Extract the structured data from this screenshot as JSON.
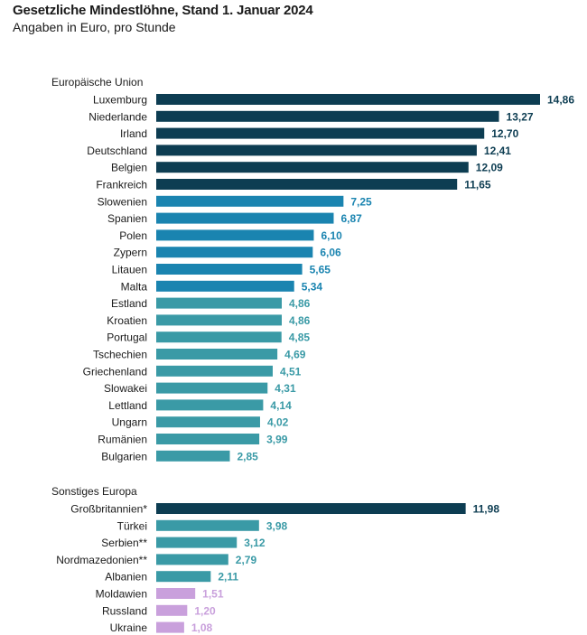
{
  "chart_data": {
    "type": "bar",
    "orientation": "horizontal",
    "title": "Gesetzliche Mindestlöhne, Stand 1. Januar 2024",
    "subtitle": "Angaben in Euro, pro Stunde",
    "groups": [
      {
        "label": "Europäische Union",
        "items": [
          {
            "category": "Luxemburg",
            "value": 14.86,
            "label": "14,86",
            "color": "#0d3d52"
          },
          {
            "category": "Niederlande",
            "value": 13.27,
            "label": "13,27",
            "color": "#0d3d52"
          },
          {
            "category": "Irland",
            "value": 12.7,
            "label": "12,70",
            "color": "#0d3d52"
          },
          {
            "category": "Deutschland",
            "value": 12.41,
            "label": "12,41",
            "color": "#0d3d52"
          },
          {
            "category": "Belgien",
            "value": 12.09,
            "label": "12,09",
            "color": "#0d3d52"
          },
          {
            "category": "Frankreich",
            "value": 11.65,
            "label": "11,65",
            "color": "#0d3d52"
          },
          {
            "category": "Slowenien",
            "value": 7.25,
            "label": "7,25",
            "color": "#1a84b0"
          },
          {
            "category": "Spanien",
            "value": 6.87,
            "label": "6,87",
            "color": "#1a84b0"
          },
          {
            "category": "Polen",
            "value": 6.1,
            "label": "6,10",
            "color": "#1a84b0"
          },
          {
            "category": "Zypern",
            "value": 6.06,
            "label": "6,06",
            "color": "#1a84b0"
          },
          {
            "category": "Litauen",
            "value": 5.65,
            "label": "5,65",
            "color": "#1a84b0"
          },
          {
            "category": "Malta",
            "value": 5.34,
            "label": "5,34",
            "color": "#1a84b0"
          },
          {
            "category": "Estland",
            "value": 4.86,
            "label": "4,86",
            "color": "#3a9aa6"
          },
          {
            "category": "Kroatien",
            "value": 4.86,
            "label": "4,86",
            "color": "#3a9aa6"
          },
          {
            "category": "Portugal",
            "value": 4.85,
            "label": "4,85",
            "color": "#3a9aa6"
          },
          {
            "category": "Tschechien",
            "value": 4.69,
            "label": "4,69",
            "color": "#3a9aa6"
          },
          {
            "category": "Griechenland",
            "value": 4.51,
            "label": "4,51",
            "color": "#3a9aa6"
          },
          {
            "category": "Slowakei",
            "value": 4.31,
            "label": "4,31",
            "color": "#3a9aa6"
          },
          {
            "category": "Lettland",
            "value": 4.14,
            "label": "4,14",
            "color": "#3a9aa6"
          },
          {
            "category": "Ungarn",
            "value": 4.02,
            "label": "4,02",
            "color": "#3a9aa6"
          },
          {
            "category": "Rumänien",
            "value": 3.99,
            "label": "3,99",
            "color": "#3a9aa6"
          },
          {
            "category": "Bulgarien",
            "value": 2.85,
            "label": "2,85",
            "color": "#3a9aa6"
          }
        ]
      },
      {
        "label": "Sonstiges Europa",
        "items": [
          {
            "category": "Großbritannien*",
            "value": 11.98,
            "label": "11,98",
            "color": "#0d3d52"
          },
          {
            "category": "Türkei",
            "value": 3.98,
            "label": "3,98",
            "color": "#3a9aa6"
          },
          {
            "category": "Serbien**",
            "value": 3.12,
            "label": "3,12",
            "color": "#3a9aa6"
          },
          {
            "category": "Nordmazedonien**",
            "value": 2.79,
            "label": "2,79",
            "color": "#3a9aa6"
          },
          {
            "category": "Albanien",
            "value": 2.11,
            "label": "2,11",
            "color": "#3a9aa6"
          },
          {
            "category": "Moldawien",
            "value": 1.51,
            "label": "1,51",
            "color": "#c9a0dc"
          },
          {
            "category": "Russland",
            "value": 1.2,
            "label": "1,20",
            "color": "#c9a0dc"
          },
          {
            "category": "Ukraine",
            "value": 1.08,
            "label": "1,08",
            "color": "#c9a0dc"
          }
        ]
      }
    ],
    "xlim": [
      0,
      14.86
    ],
    "grid": false,
    "legend": "none"
  }
}
